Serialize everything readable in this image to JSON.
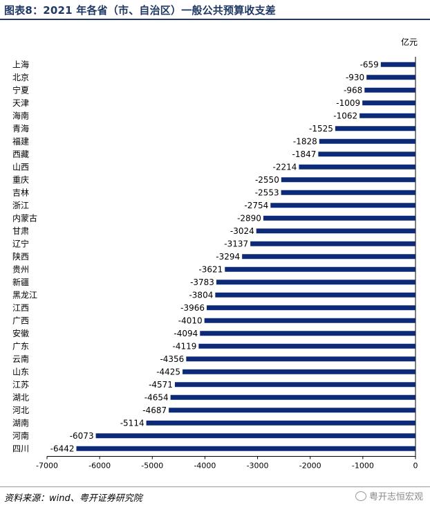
{
  "title": "图表8：2021 年各省（市、自治区）一般公共预算收支差",
  "unit_label": "亿元",
  "source": "资料来源：wind、粤开证券研究院",
  "watermark": "粤开志恒宏观",
  "watermark_icon": "wechat-icon",
  "bar_color": "#0d2a78",
  "chart_data": {
    "type": "bar",
    "orientation": "horizontal",
    "categories": [
      "上海",
      "北京",
      "宁夏",
      "天津",
      "海南",
      "青海",
      "福建",
      "西藏",
      "山西",
      "重庆",
      "吉林",
      "浙江",
      "内蒙古",
      "甘肃",
      "辽宁",
      "陕西",
      "贵州",
      "新疆",
      "黑龙江",
      "江西",
      "广西",
      "安徽",
      "广东",
      "云南",
      "山东",
      "江苏",
      "湖北",
      "河北",
      "湖南",
      "河南",
      "四川"
    ],
    "values": [
      -659,
      -930,
      -968,
      -1009,
      -1062,
      -1525,
      -1828,
      -1847,
      -2214,
      -2550,
      -2553,
      -2754,
      -2890,
      -3024,
      -3137,
      -3294,
      -3621,
      -3783,
      -3804,
      -3966,
      -4010,
      -4094,
      -4119,
      -4356,
      -4425,
      -4571,
      -4654,
      -4687,
      -5114,
      -6073,
      -6442
    ],
    "xlim": [
      -7000,
      0
    ],
    "xticks": [
      -7000,
      -6000,
      -5000,
      -4000,
      -3000,
      -2000,
      -1000,
      0
    ],
    "data_labels": true,
    "grid": false
  }
}
